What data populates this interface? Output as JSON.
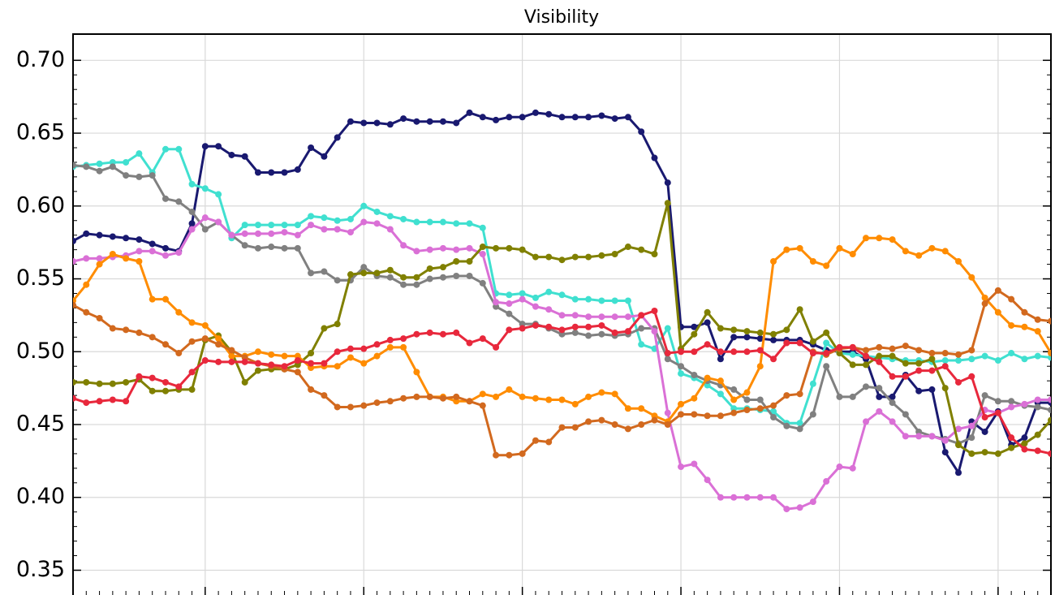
{
  "chart_data": {
    "type": "line",
    "title": "Visibility",
    "ylim": [
      0.333,
      0.718
    ],
    "yticks": [
      0.35,
      {
        "value": 0.4,
        "label": "0.40"
      },
      0.45,
      {
        "value": 0.5,
        "label": "0.50"
      },
      0.55,
      {
        "value": 0.6,
        "label": "0.60"
      },
      0.65,
      {
        "value": 0.7,
        "label": "0.70"
      }
    ],
    "grid": true,
    "series": [
      {
        "color": "#191970",
        "values": [
          0.576,
          0.581,
          0.58,
          0.579,
          0.578,
          0.577,
          0.574,
          0.571,
          0.569,
          0.588,
          0.641,
          0.641,
          0.635,
          0.634,
          0.623,
          0.623,
          0.623,
          0.625,
          0.64,
          0.634,
          0.647,
          0.658,
          0.657,
          0.657,
          0.656,
          0.66,
          0.658,
          0.658,
          0.658,
          0.657,
          0.664,
          0.661,
          0.659,
          0.661,
          0.661,
          0.664,
          0.663,
          0.661,
          0.661,
          0.661,
          0.662,
          0.66,
          0.661,
          0.651,
          0.633,
          0.616,
          0.517,
          0.517,
          0.52,
          0.495,
          0.51,
          0.51,
          0.509,
          0.508,
          0.508,
          0.508,
          0.505,
          0.501,
          0.5,
          0.5,
          0.495,
          0.469,
          0.469,
          0.484,
          0.473,
          0.474,
          0.431,
          0.417,
          0.452,
          0.445,
          0.459,
          0.436,
          0.441,
          0.465,
          0.465
        ]
      },
      {
        "color": "#40e0d0",
        "values": [
          0.627,
          0.628,
          0.629,
          0.63,
          0.63,
          0.636,
          0.623,
          0.639,
          0.639,
          0.615,
          0.612,
          0.608,
          0.578,
          0.587,
          0.587,
          0.587,
          0.587,
          0.587,
          0.593,
          0.592,
          0.59,
          0.591,
          0.6,
          0.596,
          0.593,
          0.591,
          0.589,
          0.589,
          0.589,
          0.588,
          0.588,
          0.585,
          0.54,
          0.539,
          0.54,
          0.537,
          0.541,
          0.539,
          0.536,
          0.536,
          0.535,
          0.535,
          0.535,
          0.505,
          0.502,
          0.516,
          0.485,
          0.482,
          0.477,
          0.471,
          0.461,
          0.461,
          0.46,
          0.459,
          0.451,
          0.451,
          0.478,
          0.506,
          0.499,
          0.498,
          0.497,
          0.496,
          0.495,
          0.494,
          0.494,
          0.493,
          0.494,
          0.494,
          0.495,
          0.497,
          0.494,
          0.499,
          0.495,
          0.497,
          0.496
        ]
      },
      {
        "color": "#808080",
        "values": [
          0.628,
          0.627,
          0.624,
          0.627,
          0.621,
          0.62,
          0.621,
          0.605,
          0.603,
          0.596,
          0.584,
          0.589,
          0.58,
          0.573,
          0.571,
          0.572,
          0.571,
          0.571,
          0.554,
          0.555,
          0.549,
          0.549,
          0.558,
          0.552,
          0.551,
          0.546,
          0.546,
          0.55,
          0.551,
          0.552,
          0.552,
          0.547,
          0.531,
          0.526,
          0.519,
          0.519,
          0.516,
          0.512,
          0.513,
          0.511,
          0.512,
          0.511,
          0.512,
          0.516,
          0.516,
          0.495,
          0.49,
          0.484,
          0.48,
          0.477,
          0.474,
          0.467,
          0.467,
          0.455,
          0.449,
          0.447,
          0.457,
          0.49,
          0.469,
          0.469,
          0.476,
          0.475,
          0.465,
          0.457,
          0.445,
          0.442,
          0.44,
          0.437,
          0.441,
          0.47,
          0.466,
          0.466,
          0.463,
          0.462,
          0.46
        ]
      },
      {
        "color": "#da70d6",
        "values": [
          0.562,
          0.564,
          0.564,
          0.565,
          0.566,
          0.569,
          0.569,
          0.566,
          0.568,
          0.584,
          0.592,
          0.589,
          0.58,
          0.581,
          0.581,
          0.581,
          0.582,
          0.58,
          0.587,
          0.584,
          0.584,
          0.582,
          0.589,
          0.588,
          0.584,
          0.573,
          0.569,
          0.57,
          0.571,
          0.57,
          0.571,
          0.567,
          0.534,
          0.533,
          0.536,
          0.531,
          0.529,
          0.525,
          0.525,
          0.524,
          0.524,
          0.524,
          0.524,
          0.525,
          0.514,
          0.458,
          0.421,
          0.423,
          0.412,
          0.4,
          0.4,
          0.4,
          0.4,
          0.4,
          0.392,
          0.393,
          0.397,
          0.411,
          0.421,
          0.42,
          0.452,
          0.459,
          0.452,
          0.442,
          0.442,
          0.442,
          0.439,
          0.447,
          0.449,
          0.46,
          0.458,
          0.462,
          0.464,
          0.467,
          0.467
        ]
      },
      {
        "color": "#808000",
        "values": [
          0.479,
          0.479,
          0.478,
          0.478,
          0.479,
          0.481,
          0.473,
          0.473,
          0.474,
          0.474,
          0.508,
          0.511,
          0.5,
          0.479,
          0.487,
          0.488,
          0.488,
          0.491,
          0.499,
          0.516,
          0.519,
          0.553,
          0.554,
          0.554,
          0.556,
          0.551,
          0.551,
          0.557,
          0.558,
          0.562,
          0.562,
          0.572,
          0.571,
          0.571,
          0.57,
          0.565,
          0.565,
          0.563,
          0.565,
          0.565,
          0.566,
          0.567,
          0.572,
          0.57,
          0.567,
          0.602,
          0.502,
          0.512,
          0.527,
          0.516,
          0.515,
          0.514,
          0.513,
          0.512,
          0.515,
          0.529,
          0.507,
          0.513,
          0.499,
          0.491,
          0.491,
          0.497,
          0.497,
          0.492,
          0.492,
          0.495,
          0.475,
          0.436,
          0.43,
          0.431,
          0.43,
          0.434,
          0.437,
          0.443,
          0.453
        ]
      },
      {
        "color": "#ff8c00",
        "values": [
          0.535,
          0.546,
          0.56,
          0.567,
          0.564,
          0.562,
          0.536,
          0.536,
          0.527,
          0.52,
          0.518,
          0.509,
          0.497,
          0.497,
          0.5,
          0.498,
          0.497,
          0.497,
          0.489,
          0.49,
          0.49,
          0.496,
          0.492,
          0.497,
          0.503,
          0.503,
          0.486,
          0.469,
          0.469,
          0.466,
          0.466,
          0.471,
          0.469,
          0.474,
          0.469,
          0.468,
          0.467,
          0.467,
          0.464,
          0.469,
          0.472,
          0.471,
          0.461,
          0.461,
          0.456,
          0.452,
          0.464,
          0.468,
          0.482,
          0.48,
          0.467,
          0.472,
          0.49,
          0.562,
          0.57,
          0.571,
          0.562,
          0.559,
          0.571,
          0.567,
          0.578,
          0.578,
          0.577,
          0.569,
          0.566,
          0.571,
          0.569,
          0.562,
          0.551,
          0.537,
          0.527,
          0.518,
          0.517,
          0.514,
          0.499
        ]
      },
      {
        "color": "#d2691e",
        "values": [
          0.532,
          0.527,
          0.523,
          0.516,
          0.515,
          0.513,
          0.51,
          0.505,
          0.499,
          0.507,
          0.509,
          0.505,
          0.501,
          0.496,
          0.492,
          0.49,
          0.488,
          0.486,
          0.474,
          0.47,
          0.462,
          0.462,
          0.463,
          0.465,
          0.466,
          0.468,
          0.469,
          0.469,
          0.468,
          0.469,
          0.466,
          0.463,
          0.429,
          0.429,
          0.43,
          0.439,
          0.438,
          0.448,
          0.448,
          0.452,
          0.453,
          0.45,
          0.447,
          0.45,
          0.453,
          0.45,
          0.457,
          0.457,
          0.456,
          0.456,
          0.458,
          0.46,
          0.461,
          0.463,
          0.47,
          0.471,
          0.5,
          0.498,
          0.502,
          0.503,
          0.501,
          0.503,
          0.502,
          0.504,
          0.501,
          0.499,
          0.499,
          0.498,
          0.501,
          0.533,
          0.542,
          0.536,
          0.527,
          0.522,
          0.521
        ]
      },
      {
        "color": "#e8283c",
        "values": [
          0.468,
          0.465,
          0.466,
          0.467,
          0.466,
          0.483,
          0.482,
          0.479,
          0.476,
          0.486,
          0.494,
          0.493,
          0.493,
          0.493,
          0.492,
          0.491,
          0.49,
          0.494,
          0.492,
          0.492,
          0.5,
          0.502,
          0.502,
          0.505,
          0.508,
          0.509,
          0.512,
          0.513,
          0.512,
          0.513,
          0.506,
          0.509,
          0.503,
          0.515,
          0.516,
          0.518,
          0.517,
          0.515,
          0.517,
          0.517,
          0.518,
          0.513,
          0.514,
          0.525,
          0.528,
          0.499,
          0.5,
          0.5,
          0.505,
          0.5,
          0.5,
          0.5,
          0.501,
          0.495,
          0.506,
          0.506,
          0.499,
          0.499,
          0.503,
          0.503,
          0.497,
          0.493,
          0.483,
          0.483,
          0.487,
          0.487,
          0.49,
          0.479,
          0.483,
          0.455,
          0.458,
          0.441,
          0.433,
          0.432,
          0.43
        ]
      }
    ]
  }
}
